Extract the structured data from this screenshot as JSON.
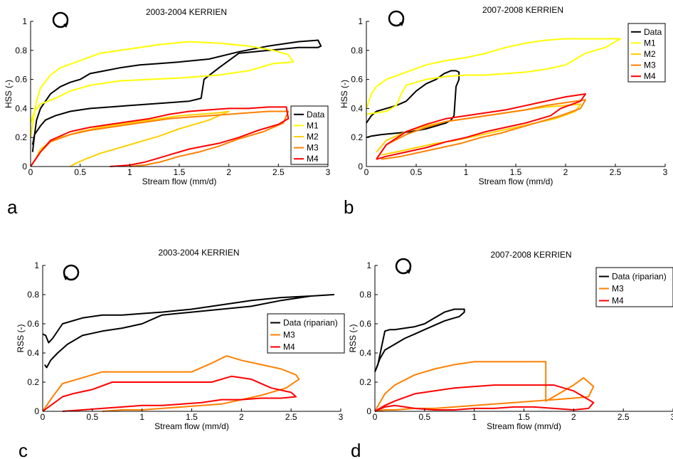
{
  "figure": {
    "panel_letters": [
      "a",
      "b",
      "c",
      "d"
    ]
  },
  "chart_data": [
    {
      "panel": "a",
      "type": "line",
      "title": "2003-2004 KERRIEN",
      "xlabel": "Stream flow (mm/d)",
      "ylabel": "HSS (-)",
      "xlim": [
        0,
        3
      ],
      "ylim": [
        0,
        1
      ],
      "xticks": [
        "0",
        "0.5",
        "1",
        "1.5",
        "2",
        "2.5",
        "3"
      ],
      "yticks": [
        "0",
        "0.2",
        "0.4",
        "0.6",
        "0.8",
        "1"
      ],
      "grid": false,
      "legend": "lower-right",
      "rotation_symbol": "clockwise",
      "series": [
        {
          "name": "Data",
          "color": "#000000",
          "x": [
            0.02,
            0.04,
            0.06,
            0.1,
            0.15,
            0.2,
            0.3,
            0.4,
            0.5,
            0.6,
            0.75,
            0.9,
            1.1,
            1.3,
            1.5,
            1.8,
            2.1,
            2.4,
            2.7,
            2.9,
            2.93,
            2.9,
            2.7,
            2.4,
            2.1,
            1.9,
            1.75,
            1.72,
            1.6,
            1.4,
            1.2,
            1.0,
            0.8,
            0.6,
            0.4,
            0.25,
            0.15,
            0.1,
            0.06,
            0.04,
            0.02
          ],
          "y": [
            0.1,
            0.22,
            0.32,
            0.4,
            0.45,
            0.5,
            0.55,
            0.58,
            0.6,
            0.64,
            0.66,
            0.68,
            0.7,
            0.71,
            0.72,
            0.74,
            0.79,
            0.83,
            0.86,
            0.87,
            0.83,
            0.82,
            0.82,
            0.8,
            0.78,
            0.68,
            0.6,
            0.47,
            0.45,
            0.44,
            0.43,
            0.42,
            0.41,
            0.4,
            0.38,
            0.35,
            0.32,
            0.28,
            0.24,
            0.22,
            0.15
          ]
        },
        {
          "name": "M1",
          "color": "#ffff00",
          "x": [
            0.0,
            0.03,
            0.06,
            0.1,
            0.2,
            0.3,
            0.5,
            0.7,
            0.9,
            1.1,
            1.3,
            1.6,
            1.9,
            2.2,
            2.45,
            2.6,
            2.65,
            2.45,
            2.2,
            1.9,
            1.5,
            1.2,
            0.9,
            0.6,
            0.4,
            0.25,
            0.1,
            0.04,
            0.0
          ],
          "y": [
            0.2,
            0.33,
            0.45,
            0.54,
            0.63,
            0.68,
            0.73,
            0.78,
            0.8,
            0.82,
            0.84,
            0.86,
            0.85,
            0.83,
            0.8,
            0.77,
            0.72,
            0.71,
            0.66,
            0.63,
            0.61,
            0.6,
            0.59,
            0.56,
            0.52,
            0.47,
            0.43,
            0.38,
            0.3
          ]
        },
        {
          "name": "M2",
          "color": "#ffd000",
          "x": [
            0.05,
            0.1,
            0.2,
            0.3,
            0.5,
            0.7,
            0.9,
            1.1,
            1.3,
            1.5,
            1.7,
            1.9,
            2.0,
            1.8,
            1.5,
            1.3,
            1.1,
            0.9,
            0.7,
            0.55,
            0.45,
            0.4
          ],
          "y": [
            0.05,
            0.12,
            0.17,
            0.2,
            0.24,
            0.27,
            0.29,
            0.31,
            0.33,
            0.35,
            0.36,
            0.37,
            0.38,
            0.32,
            0.26,
            0.21,
            0.17,
            0.13,
            0.09,
            0.05,
            0.02,
            0.0
          ]
        },
        {
          "name": "M3",
          "color": "#ff8000",
          "x": [
            0.0,
            0.1,
            0.2,
            0.4,
            0.6,
            0.8,
            1.0,
            1.2,
            1.4,
            1.6,
            1.8,
            2.0,
            2.2,
            2.4,
            2.6,
            2.55,
            2.35,
            2.1,
            1.9,
            1.7,
            1.5,
            1.3,
            1.15,
            1.0
          ],
          "y": [
            0.0,
            0.1,
            0.17,
            0.22,
            0.25,
            0.27,
            0.29,
            0.31,
            0.33,
            0.34,
            0.35,
            0.36,
            0.37,
            0.38,
            0.38,
            0.3,
            0.24,
            0.19,
            0.14,
            0.1,
            0.07,
            0.03,
            0.01,
            0.0
          ]
        },
        {
          "name": "M4",
          "color": "#ff0000",
          "x": [
            0.0,
            0.1,
            0.2,
            0.4,
            0.6,
            0.8,
            1.0,
            1.2,
            1.4,
            1.6,
            1.8,
            2.0,
            2.2,
            2.4,
            2.58,
            2.6,
            2.5,
            2.3,
            2.1,
            1.9,
            1.75,
            1.6,
            1.45,
            1.3,
            1.15,
            1.0,
            0.8
          ],
          "y": [
            0.0,
            0.1,
            0.18,
            0.24,
            0.27,
            0.29,
            0.31,
            0.33,
            0.36,
            0.38,
            0.39,
            0.4,
            0.4,
            0.41,
            0.41,
            0.33,
            0.29,
            0.25,
            0.2,
            0.16,
            0.14,
            0.12,
            0.09,
            0.06,
            0.03,
            0.01,
            0.0
          ]
        }
      ]
    },
    {
      "panel": "b",
      "type": "line",
      "title": "2007-2008 KERRIEN",
      "xlabel": "Stream flow (mm/d)",
      "ylabel": "HSS (-)",
      "xlim": [
        0,
        3
      ],
      "ylim": [
        0,
        1
      ],
      "xticks": [
        "0",
        "0.5",
        "1",
        "1.5",
        "2",
        "2.5",
        "3"
      ],
      "yticks": [
        "0",
        "0.2",
        "0.4",
        "0.6",
        "0.8",
        "1"
      ],
      "grid": false,
      "legend": "top-right",
      "rotation_symbol": "clockwise",
      "series": [
        {
          "name": "Data",
          "color": "#000000",
          "x": [
            0.0,
            0.05,
            0.1,
            0.2,
            0.3,
            0.4,
            0.5,
            0.6,
            0.7,
            0.78,
            0.85,
            0.9,
            0.93,
            0.93,
            0.9,
            0.88,
            0.85,
            0.8,
            0.7,
            0.6,
            0.45,
            0.3,
            0.15,
            0.05,
            0.0
          ],
          "y": [
            0.3,
            0.35,
            0.38,
            0.4,
            0.42,
            0.45,
            0.52,
            0.57,
            0.6,
            0.64,
            0.66,
            0.66,
            0.65,
            0.6,
            0.55,
            0.35,
            0.32,
            0.3,
            0.28,
            0.26,
            0.24,
            0.23,
            0.22,
            0.21,
            0.2
          ]
        },
        {
          "name": "M1",
          "color": "#ffff00",
          "x": [
            0.0,
            0.05,
            0.1,
            0.2,
            0.4,
            0.6,
            0.8,
            1.0,
            1.2,
            1.4,
            1.6,
            1.8,
            2.0,
            2.2,
            2.4,
            2.55,
            2.4,
            2.2,
            2.0,
            1.8,
            1.6,
            1.4,
            1.2,
            1.0,
            0.8,
            0.6,
            0.4,
            0.35,
            0.3,
            0.2,
            0.1,
            0.0
          ],
          "y": [
            0.4,
            0.5,
            0.55,
            0.6,
            0.65,
            0.7,
            0.73,
            0.75,
            0.78,
            0.82,
            0.85,
            0.87,
            0.88,
            0.88,
            0.88,
            0.88,
            0.82,
            0.78,
            0.7,
            0.67,
            0.65,
            0.64,
            0.63,
            0.63,
            0.62,
            0.6,
            0.56,
            0.5,
            0.42,
            0.38,
            0.37,
            0.36
          ]
        },
        {
          "name": "M2",
          "color": "#ffd000",
          "x": [
            0.1,
            0.2,
            0.4,
            0.6,
            0.8,
            1.0,
            1.2,
            1.4,
            1.6,
            1.8,
            2.0,
            2.15,
            2.1,
            1.9,
            1.7,
            1.5,
            1.3,
            1.1,
            0.9,
            0.7,
            0.5,
            0.3,
            0.15
          ],
          "y": [
            0.1,
            0.18,
            0.24,
            0.28,
            0.31,
            0.33,
            0.35,
            0.37,
            0.39,
            0.41,
            0.42,
            0.43,
            0.38,
            0.33,
            0.3,
            0.27,
            0.24,
            0.21,
            0.18,
            0.16,
            0.13,
            0.1,
            0.08
          ]
        },
        {
          "name": "M3",
          "color": "#ff8000",
          "x": [
            0.1,
            0.2,
            0.4,
            0.6,
            0.8,
            1.0,
            1.2,
            1.4,
            1.6,
            1.8,
            2.0,
            2.2,
            2.15,
            1.95,
            1.75,
            1.55,
            1.35,
            1.15,
            0.95,
            0.75,
            0.55,
            0.35,
            0.15
          ],
          "y": [
            0.05,
            0.15,
            0.22,
            0.27,
            0.31,
            0.33,
            0.35,
            0.37,
            0.39,
            0.42,
            0.44,
            0.46,
            0.4,
            0.35,
            0.31,
            0.27,
            0.23,
            0.2,
            0.16,
            0.13,
            0.1,
            0.07,
            0.05
          ]
        },
        {
          "name": "M4",
          "color": "#ff0000",
          "x": [
            0.1,
            0.2,
            0.4,
            0.6,
            0.8,
            1.0,
            1.2,
            1.4,
            1.6,
            1.8,
            2.0,
            2.2,
            2.15,
            1.95,
            1.85,
            1.6,
            1.4,
            1.2,
            1.0,
            0.8,
            0.6,
            0.4,
            0.2,
            0.1
          ],
          "y": [
            0.05,
            0.15,
            0.24,
            0.29,
            0.33,
            0.35,
            0.37,
            0.39,
            0.42,
            0.45,
            0.48,
            0.5,
            0.45,
            0.4,
            0.35,
            0.3,
            0.27,
            0.24,
            0.2,
            0.17,
            0.13,
            0.1,
            0.07,
            0.05
          ]
        }
      ]
    },
    {
      "panel": "c",
      "type": "line",
      "title": "2003-2004 KERRIEN",
      "xlabel": "Stream flow (mm/d)",
      "ylabel": "RSS (-)",
      "xlim": [
        0,
        3
      ],
      "ylim": [
        0,
        1
      ],
      "xticks": [
        "0",
        "0.5",
        "1",
        "1.5",
        "2",
        "2.5",
        "3"
      ],
      "yticks": [
        "0",
        "0.2",
        "0.4",
        "0.6",
        "0.8",
        "1"
      ],
      "grid": false,
      "legend": "right",
      "rotation_symbol": "counterclockwise",
      "series": [
        {
          "name": "Data (riparian)",
          "color": "#000000",
          "x": [
            0.0,
            0.03,
            0.06,
            0.1,
            0.2,
            0.4,
            0.6,
            0.8,
            1.0,
            1.2,
            1.5,
            1.8,
            2.1,
            2.4,
            2.7,
            2.93,
            2.7,
            2.4,
            2.1,
            1.8,
            1.5,
            1.2,
            1.0,
            0.8,
            0.6,
            0.4,
            0.25,
            0.15,
            0.08,
            0.04,
            0.02
          ],
          "y": [
            0.53,
            0.52,
            0.47,
            0.5,
            0.6,
            0.64,
            0.66,
            0.66,
            0.67,
            0.68,
            0.7,
            0.73,
            0.76,
            0.78,
            0.79,
            0.8,
            0.79,
            0.76,
            0.72,
            0.7,
            0.68,
            0.66,
            0.6,
            0.57,
            0.55,
            0.52,
            0.46,
            0.4,
            0.35,
            0.3,
            0.32
          ]
        },
        {
          "name": "M3",
          "color": "#ff8000",
          "x": [
            0.0,
            0.1,
            0.2,
            0.35,
            0.6,
            0.9,
            1.2,
            1.5,
            1.7,
            1.85,
            2.0,
            2.2,
            2.4,
            2.55,
            2.58,
            2.45,
            2.2,
            2.0,
            1.8,
            1.6,
            1.4,
            1.2,
            1.0,
            0.8,
            0.6
          ],
          "y": [
            0.0,
            0.1,
            0.19,
            0.22,
            0.27,
            0.27,
            0.27,
            0.27,
            0.33,
            0.38,
            0.35,
            0.32,
            0.29,
            0.25,
            0.22,
            0.16,
            0.11,
            0.08,
            0.05,
            0.04,
            0.03,
            0.02,
            0.01,
            0.01,
            0.0
          ]
        },
        {
          "name": "M4",
          "color": "#ff0000",
          "x": [
            0.0,
            0.1,
            0.2,
            0.3,
            0.5,
            0.7,
            0.9,
            1.1,
            1.3,
            1.5,
            1.7,
            1.9,
            2.1,
            2.3,
            2.5,
            2.55,
            2.4,
            2.2,
            2.0,
            1.8,
            1.6,
            1.4,
            1.2,
            1.0,
            0.8,
            0.6,
            0.4,
            0.2
          ],
          "y": [
            0.0,
            0.05,
            0.1,
            0.12,
            0.15,
            0.2,
            0.2,
            0.2,
            0.2,
            0.2,
            0.2,
            0.24,
            0.22,
            0.16,
            0.13,
            0.1,
            0.09,
            0.09,
            0.08,
            0.08,
            0.06,
            0.05,
            0.04,
            0.04,
            0.03,
            0.02,
            0.01,
            0.0
          ]
        }
      ]
    },
    {
      "panel": "d",
      "type": "line",
      "title": "2007-2008 KERRIEN",
      "xlabel": "Stream flow (mm/d)",
      "ylabel": "RSS (-)",
      "xlim": [
        0,
        3
      ],
      "ylim": [
        0,
        1
      ],
      "xticks": [
        "0",
        "0.5",
        "1",
        "1.5",
        "2",
        "2.5",
        "3"
      ],
      "yticks": [
        "0",
        "0.2",
        "0.4",
        "0.6",
        "0.8",
        "1"
      ],
      "grid": false,
      "legend": "top-right",
      "rotation_symbol": "clockwise",
      "series": [
        {
          "name": "Data (riparian)",
          "color": "#000000",
          "x": [
            0.0,
            0.03,
            0.06,
            0.1,
            0.15,
            0.2,
            0.3,
            0.4,
            0.5,
            0.6,
            0.7,
            0.8,
            0.9,
            0.9,
            0.85,
            0.8,
            0.7,
            0.6,
            0.5,
            0.4,
            0.3,
            0.2,
            0.1,
            0.05,
            0.0
          ],
          "y": [
            0.27,
            0.32,
            0.42,
            0.55,
            0.56,
            0.56,
            0.57,
            0.58,
            0.6,
            0.64,
            0.68,
            0.7,
            0.7,
            0.68,
            0.65,
            0.64,
            0.62,
            0.59,
            0.56,
            0.53,
            0.5,
            0.46,
            0.42,
            0.36,
            0.27
          ]
        },
        {
          "name": "M3",
          "color": "#ff8000",
          "x": [
            0.0,
            0.1,
            0.2,
            0.4,
            0.6,
            0.8,
            1.0,
            1.2,
            1.4,
            1.6,
            1.72,
            1.72,
            1.8,
            2.0,
            2.1,
            2.2,
            2.15,
            2.0,
            1.8,
            1.6,
            1.4,
            1.2,
            1.0,
            0.8,
            0.6,
            0.4,
            0.2,
            0.1,
            0.0
          ],
          "y": [
            0.0,
            0.12,
            0.18,
            0.25,
            0.29,
            0.32,
            0.34,
            0.34,
            0.34,
            0.34,
            0.34,
            0.07,
            0.1,
            0.18,
            0.23,
            0.17,
            0.1,
            0.09,
            0.08,
            0.07,
            0.06,
            0.05,
            0.04,
            0.03,
            0.02,
            0.02,
            0.01,
            0.01,
            0.0
          ]
        },
        {
          "name": "M4",
          "color": "#ff0000",
          "x": [
            0.0,
            0.1,
            0.2,
            0.4,
            0.6,
            0.8,
            1.0,
            1.2,
            1.4,
            1.6,
            1.8,
            2.0,
            2.1,
            2.2,
            2.15,
            2.0,
            1.8,
            1.6,
            1.4,
            1.2,
            1.0,
            0.8,
            0.6,
            0.4,
            0.2,
            0.1,
            0.0
          ],
          "y": [
            0.0,
            0.04,
            0.07,
            0.12,
            0.14,
            0.16,
            0.17,
            0.18,
            0.18,
            0.18,
            0.18,
            0.14,
            0.1,
            0.06,
            0.02,
            0.01,
            0.02,
            0.03,
            0.03,
            0.02,
            0.02,
            0.01,
            0.01,
            0.02,
            0.04,
            0.03,
            0.0
          ]
        }
      ]
    }
  ]
}
